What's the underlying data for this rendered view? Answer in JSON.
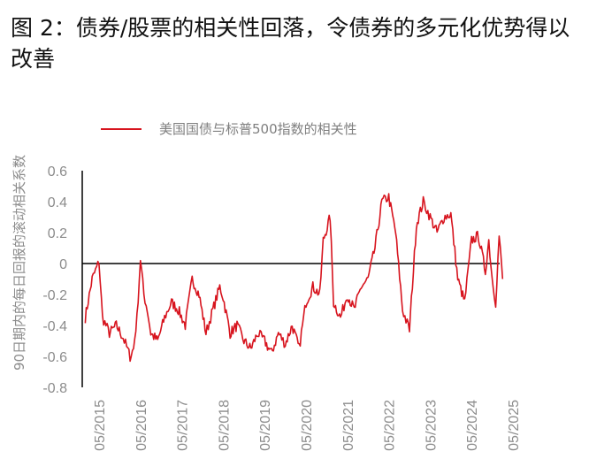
{
  "title": "图 2：债券/股票的相关性回落，令债券的多元化优势得以改善",
  "colors": {
    "series": "#d7141e",
    "axis": "#000000",
    "tick_text": "#8c8c8c"
  },
  "chart_data": {
    "type": "line",
    "title": "图 2：债券/股票的相关性回落，令债券的多元化优势得以改善",
    "ylabel": "90日期内的每日回报的滚动相关系数",
    "xlabel": "",
    "ylim": [
      -0.8,
      0.6
    ],
    "yticks": [
      "0.6",
      "0.4",
      "0.2",
      "0",
      "-0.2",
      "-0.4",
      "-0.6",
      "-0.8"
    ],
    "xticks": [
      "05/2015",
      "05/2016",
      "05/2017",
      "05/2018",
      "05/2019",
      "05/2020",
      "05/2021",
      "05/2022",
      "05/2023",
      "05/2024",
      "05/2025"
    ],
    "legend": "top-left",
    "grid": false,
    "series": [
      {
        "name": "美国国债与标普500指数的相关性",
        "x": [
          "2015-01",
          "2015-03",
          "2015-05",
          "2015-06",
          "2015-08",
          "2015-10",
          "2015-12",
          "2016-02",
          "2016-03",
          "2016-04",
          "2016-05",
          "2016-06",
          "2016-07",
          "2016-08",
          "2016-10",
          "2016-12",
          "2017-02",
          "2017-04",
          "2017-06",
          "2017-08",
          "2017-10",
          "2017-12",
          "2018-02",
          "2018-04",
          "2018-05",
          "2018-07",
          "2018-09",
          "2018-11",
          "2019-01",
          "2019-03",
          "2019-05",
          "2019-07",
          "2019-09",
          "2019-11",
          "2020-01",
          "2020-03",
          "2020-05",
          "2020-07",
          "2020-09",
          "2020-10",
          "2020-12",
          "2021-01",
          "2021-03",
          "2021-05",
          "2021-07",
          "2021-09",
          "2021-11",
          "2022-01",
          "2022-03",
          "2022-05",
          "2022-07",
          "2022-09",
          "2022-11",
          "2023-01",
          "2023-03",
          "2023-05",
          "2023-07",
          "2023-09",
          "2023-11",
          "2024-01",
          "2024-03",
          "2024-05",
          "2024-07",
          "2024-09",
          "2024-10",
          "2024-11",
          "2024-12",
          "2025-01",
          "2025-02"
        ],
        "values": [
          -0.35,
          -0.1,
          0.01,
          -0.35,
          -0.45,
          -0.4,
          -0.48,
          -0.6,
          -0.55,
          -0.35,
          0.03,
          -0.2,
          -0.3,
          -0.45,
          -0.5,
          -0.35,
          -0.25,
          -0.3,
          -0.4,
          -0.1,
          -0.2,
          -0.45,
          -0.3,
          -0.15,
          -0.22,
          -0.45,
          -0.4,
          -0.5,
          -0.55,
          -0.45,
          -0.5,
          -0.58,
          -0.45,
          -0.52,
          -0.4,
          -0.55,
          -0.25,
          -0.15,
          -0.2,
          0.15,
          0.3,
          -0.25,
          -0.35,
          -0.2,
          -0.3,
          -0.15,
          -0.1,
          0.1,
          0.4,
          0.43,
          0.2,
          -0.3,
          -0.43,
          0.25,
          0.4,
          0.3,
          0.2,
          0.3,
          0.32,
          -0.1,
          -0.25,
          0.15,
          0.18,
          -0.05,
          0.15,
          -0.1,
          -0.25,
          0.18,
          -0.1
        ]
      }
    ]
  }
}
